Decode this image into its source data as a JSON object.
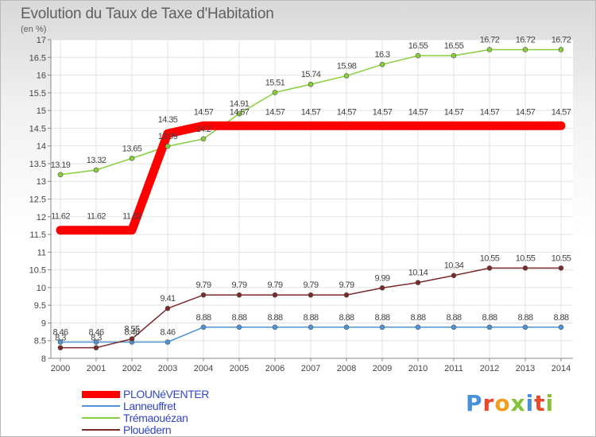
{
  "header": {
    "title": "Evolution du Taux de Taxe d'Habitation",
    "subtitle": "(en %)"
  },
  "logo": {
    "text": "Proxiti"
  },
  "chart_data": {
    "type": "line",
    "title": "Evolution du Taux de Taxe d'Habitation",
    "ylabel": "(en %)",
    "xlabel": "",
    "ylim": [
      8,
      17
    ],
    "yticks": [
      "8",
      "8.5",
      "9",
      "9.5",
      "10",
      "10.5",
      "11",
      "11.5",
      "12",
      "12.5",
      "13",
      "13.5",
      "14",
      "14.5",
      "15",
      "15.5",
      "16",
      "16.5",
      "17"
    ],
    "grid": true,
    "legend_position": "bottom-left",
    "x": [
      "2000",
      "2001",
      "2002",
      "2003",
      "2004",
      "2005",
      "2006",
      "2007",
      "2008",
      "2009",
      "2010",
      "2011",
      "2012",
      "2013",
      "2014"
    ],
    "series": [
      {
        "name": "PLOUNéVENTER",
        "color": "#ff0000",
        "thick": true,
        "values": [
          11.62,
          11.62,
          11.62,
          14.35,
          14.57,
          14.57,
          14.57,
          14.57,
          14.57,
          14.57,
          14.57,
          14.57,
          14.57,
          14.57,
          14.57
        ],
        "labels": [
          "11.62",
          "11.62",
          "11.62",
          "14.35",
          "14.57",
          "14.57",
          "14.57",
          "14.57",
          "14.57",
          "14.57",
          "14.57",
          "14.57",
          "14.57",
          "14.57",
          "14.57"
        ]
      },
      {
        "name": "Lanneuffret",
        "color": "#4f93d6",
        "values": [
          8.46,
          8.46,
          8.46,
          8.46,
          8.88,
          8.88,
          8.88,
          8.88,
          8.88,
          8.88,
          8.88,
          8.88,
          8.88,
          8.88,
          8.88
        ],
        "labels": [
          "8.46",
          "8.46",
          "8.46",
          "8.46",
          "8.88",
          "8.88",
          "8.88",
          "8.88",
          "8.88",
          "8.88",
          "8.88",
          "8.88",
          "8.88",
          "8.88",
          "8.88"
        ]
      },
      {
        "name": "Trémaouézan",
        "color": "#86cf3a",
        "values": [
          13.19,
          13.32,
          13.65,
          13.99,
          14.2,
          14.91,
          15.51,
          15.74,
          15.98,
          16.3,
          16.55,
          16.55,
          16.72,
          16.72,
          16.72
        ],
        "labels": [
          "13.19",
          "13.32",
          "13.65",
          "13.99",
          "14.2",
          "14.91",
          "15.51",
          "15.74",
          "15.98",
          "16.3",
          "16.55",
          "16.55",
          "16.72",
          "16.72",
          "16.72"
        ]
      },
      {
        "name": "Plouédern",
        "color": "#7a2a2a",
        "values": [
          8.3,
          8.3,
          8.55,
          9.41,
          9.79,
          9.79,
          9.79,
          9.79,
          9.79,
          9.99,
          10.14,
          10.34,
          10.55,
          10.55,
          10.55
        ],
        "labels": [
          "8.3",
          "8.3",
          "8.55",
          "9.41",
          "9.79",
          "9.79",
          "9.79",
          "9.79",
          "9.79",
          "9.99",
          "10.14",
          "10.34",
          "10.55",
          "10.55",
          "10.55"
        ]
      }
    ]
  }
}
